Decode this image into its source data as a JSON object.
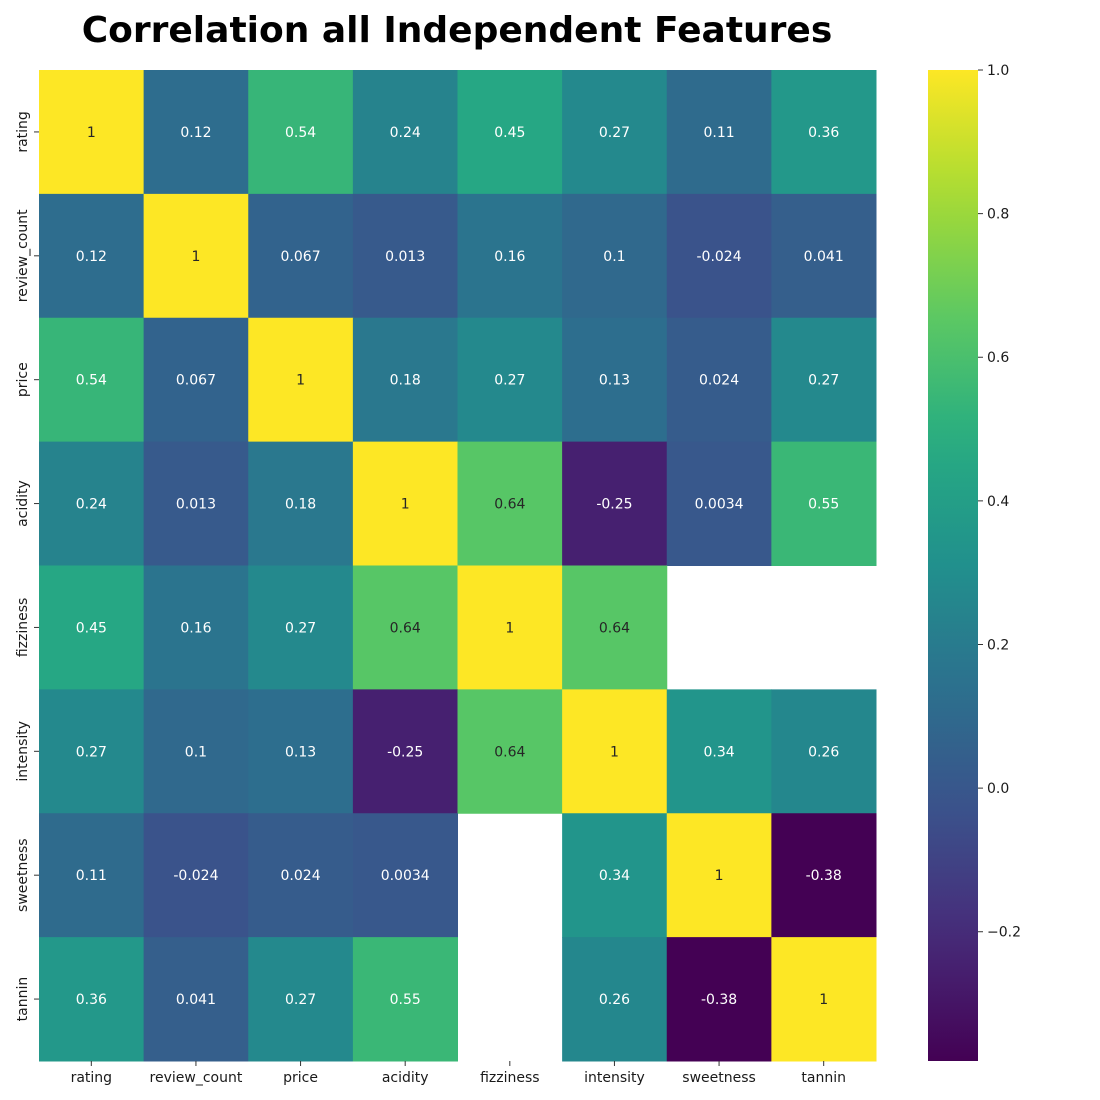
{
  "chart_data": {
    "type": "heatmap",
    "title": "Correlation all Independent Features",
    "xlabel": "",
    "ylabel": "",
    "labels": [
      "rating",
      "review_count",
      "price",
      "acidity",
      "fizziness",
      "intensity",
      "sweetness",
      "tannin"
    ],
    "matrix": [
      [
        1,
        0.12,
        0.54,
        0.24,
        0.45,
        0.27,
        0.11,
        0.36
      ],
      [
        0.12,
        1,
        0.067,
        0.013,
        0.16,
        0.1,
        -0.024,
        0.041
      ],
      [
        0.54,
        0.067,
        1,
        0.18,
        0.27,
        0.13,
        0.024,
        0.27
      ],
      [
        0.24,
        0.013,
        0.18,
        1,
        0.64,
        -0.25,
        0.0034,
        0.55
      ],
      [
        0.45,
        0.16,
        0.27,
        0.64,
        1,
        0.64,
        null,
        null
      ],
      [
        0.27,
        0.1,
        0.13,
        -0.25,
        0.64,
        1,
        0.34,
        0.26
      ],
      [
        0.11,
        -0.024,
        0.024,
        0.0034,
        null,
        0.34,
        1,
        -0.38
      ],
      [
        0.36,
        0.041,
        0.27,
        0.55,
        null,
        0.26,
        -0.38,
        1
      ]
    ],
    "annotations": [
      [
        "1",
        "0.12",
        "0.54",
        "0.24",
        "0.45",
        "0.27",
        "0.11",
        "0.36"
      ],
      [
        "0.12",
        "1",
        "0.067",
        "0.013",
        "0.16",
        "0.1",
        "-0.024",
        "0.041"
      ],
      [
        "0.54",
        "0.067",
        "1",
        "0.18",
        "0.27",
        "0.13",
        "0.024",
        "0.27"
      ],
      [
        "0.24",
        "0.013",
        "0.18",
        "1",
        "0.64",
        "-0.25",
        "0.0034",
        "0.55"
      ],
      [
        "0.45",
        "0.16",
        "0.27",
        "0.64",
        "1",
        "0.64",
        "",
        ""
      ],
      [
        "0.27",
        "0.1",
        "0.13",
        "-0.25",
        "0.64",
        "1",
        "0.34",
        "0.26"
      ],
      [
        "0.11",
        "-0.024",
        "0.024",
        "0.0034",
        "",
        "0.34",
        "1",
        "-0.38"
      ],
      [
        "0.36",
        "0.041",
        "0.27",
        "0.55",
        "",
        "0.26",
        "-0.38",
        "1"
      ]
    ],
    "colormap": "viridis",
    "vmin": -0.38,
    "vmax": 1.0,
    "colorbar": {
      "ticks": [
        1.0,
        0.8,
        0.6,
        0.4,
        0.2,
        0.0,
        -0.2
      ],
      "tick_labels": [
        "1.0",
        "0.8",
        "0.6",
        "0.4",
        "0.2",
        "0.0",
        "−0.2"
      ]
    },
    "grid": false,
    "legend": "colorbar-right"
  }
}
